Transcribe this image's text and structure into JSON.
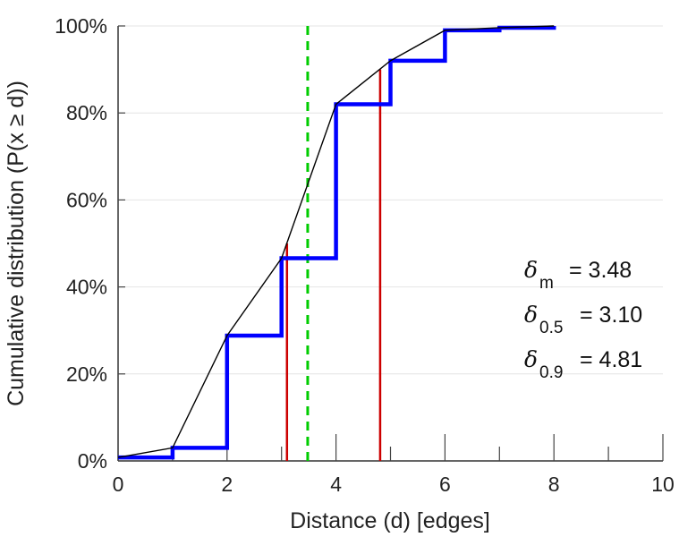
{
  "chart_data": {
    "type": "line",
    "xlabel": "Distance (d) [edges]",
    "ylabel": "Cumulative distribution (P(x ≥ d))",
    "xlim": [
      0,
      10
    ],
    "ylim": [
      0,
      100
    ],
    "x_ticks": [
      0,
      2,
      4,
      6,
      8,
      10
    ],
    "x_minor_ticks": [
      0,
      1,
      2,
      3,
      4,
      5,
      6,
      7,
      8,
      9,
      10
    ],
    "y_ticks": [
      0,
      20,
      40,
      60,
      80,
      100
    ],
    "y_tick_labels": [
      "0%",
      "20%",
      "40%",
      "60%",
      "80%",
      "100%"
    ],
    "grid": "horizontal",
    "series": [
      {
        "style": "step",
        "color": "#0000ff",
        "x": [
          0,
          1,
          2,
          3,
          4,
          5,
          6,
          7,
          8
        ],
        "y": [
          0.8,
          3.0,
          28.8,
          46.6,
          82.0,
          92.0,
          99.0,
          99.6,
          100
        ]
      },
      {
        "style": "line",
        "color": "#000000",
        "x": [
          0,
          1,
          2,
          3,
          4,
          5,
          6,
          7,
          8
        ],
        "y": [
          0.8,
          3.0,
          28.8,
          46.6,
          82.0,
          92.0,
          99.0,
          99.6,
          100
        ]
      }
    ],
    "vertical_markers": [
      {
        "x": 3.1,
        "y_top": 50,
        "color": "#cc0000",
        "style": "solid"
      },
      {
        "x": 4.81,
        "y_top": 90,
        "color": "#cc0000",
        "style": "solid"
      },
      {
        "x": 3.48,
        "y_top": 100,
        "color": "#00cc00",
        "style": "dashed"
      }
    ],
    "annotations": [
      {
        "symbol": "δ",
        "sub": "m",
        "text": "= 3.48"
      },
      {
        "symbol": "δ",
        "sub": "0.5",
        "text": "= 3.10"
      },
      {
        "symbol": "δ",
        "sub": "0.9",
        "text": "= 4.81"
      }
    ],
    "annotation_placement": "right"
  }
}
